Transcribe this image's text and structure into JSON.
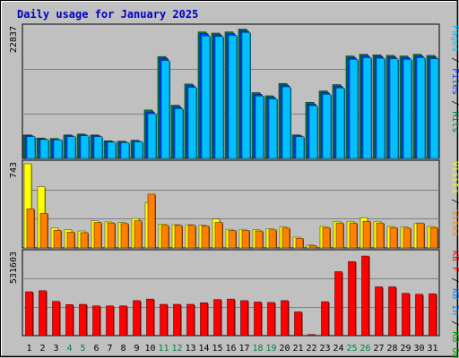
{
  "chart_data": {
    "type": "bar",
    "title": "Daily usage for January 2025",
    "categories": [
      "1",
      "2",
      "3",
      "4",
      "5",
      "6",
      "7",
      "8",
      "9",
      "10",
      "11",
      "12",
      "13",
      "14",
      "15",
      "16",
      "17",
      "18",
      "19",
      "20",
      "21",
      "22",
      "23",
      "24",
      "25",
      "26",
      "27",
      "28",
      "29",
      "30",
      "31"
    ],
    "weekend_days": [
      "4",
      "5",
      "11",
      "12",
      "18",
      "19",
      "25",
      "26"
    ],
    "panels": [
      {
        "id": "hits",
        "max_label": "22837",
        "ymax": 22837,
        "right_label": [
          {
            "text": "Pages",
            "color": "#00c0ff"
          },
          {
            "text": " / ",
            "color": "#000000"
          },
          {
            "text": "Files",
            "color": "#0040ff"
          },
          {
            "text": " / ",
            "color": "#000000"
          },
          {
            "text": "Hits",
            "color": "#008040"
          }
        ],
        "series": [
          {
            "name": "Hits",
            "color": "#008040",
            "values": [
              4100,
              3560,
              3470,
              4100,
              4250,
              4100,
              3080,
              3000,
              3160,
              8460,
              17800,
              9300,
              13000,
              22100,
              21900,
              22100,
              22600,
              11500,
              10950,
              13100,
              4100,
              9800,
              11800,
              12900,
              17900,
              18200,
              18100,
              18000,
              17900,
              18200,
              18000
            ]
          },
          {
            "name": "Files",
            "color": "#0040ff",
            "values": [
              3950,
              3400,
              3320,
              3950,
              4100,
              3950,
              2950,
              2850,
              3010,
              8100,
              17500,
              9000,
              12700,
              21800,
              21600,
              21800,
              22300,
              11200,
              10650,
              12800,
              3950,
              9500,
              11500,
              12600,
              17600,
              17900,
              17800,
              17700,
              17600,
              17900,
              17700
            ]
          },
          {
            "name": "Pages",
            "color": "#00c0ff",
            "values": [
              3800,
              3300,
              3250,
              3800,
              3950,
              3800,
              2850,
              2750,
              2900,
              7800,
              17100,
              8700,
              12400,
              21400,
              21300,
              21500,
              22000,
              10900,
              10400,
              12500,
              3800,
              9200,
              11200,
              12300,
              17300,
              17600,
              17500,
              17400,
              17300,
              17600,
              17400
            ]
          }
        ]
      },
      {
        "id": "visits",
        "max_label": "743",
        "ymax": 743,
        "right_label": [
          {
            "text": "Visits",
            "color": "#ffff00"
          },
          {
            "text": " / ",
            "color": "#000000"
          },
          {
            "text": "Sites",
            "color": "#ff8000"
          }
        ],
        "series": [
          {
            "name": "Visits",
            "color": "#ffff00",
            "values": [
              743,
              540,
              175,
              160,
              150,
              240,
              230,
              225,
              260,
              400,
              210,
              205,
              205,
              200,
              255,
              165,
              165,
              160,
              170,
              185,
              95,
              25,
              190,
              235,
              235,
              265,
              235,
              190,
              185,
              215,
              190
            ]
          },
          {
            "name": "Sites",
            "color": "#ff8000",
            "values": [
              345,
              305,
              155,
              140,
              135,
              225,
              220,
              215,
              240,
              475,
              200,
              200,
              200,
              195,
              225,
              155,
              155,
              150,
              160,
              175,
              85,
              20,
              180,
              220,
              220,
              235,
              220,
              180,
              175,
              220,
              180
            ]
          }
        ]
      },
      {
        "id": "kbytes",
        "max_label": "531603",
        "ymax": 531603,
        "right_label": [
          {
            "text": "KB F",
            "color": "#ff0000"
          },
          {
            "text": " / ",
            "color": "#000000"
          },
          {
            "text": "KB In",
            "color": "#0080ff"
          },
          {
            "text": " / ",
            "color": "#000000"
          },
          {
            "text": "KB Out",
            "color": "#00a000"
          }
        ],
        "series": [
          {
            "name": "KB F",
            "color": "#ff0000",
            "values": [
              283000,
              290000,
              221000,
              200000,
              202000,
              192000,
              192000,
              192000,
              226000,
              236000,
              202000,
              202000,
              202000,
              212000,
              233000,
              236000,
              226000,
              217000,
              214000,
              226000,
              153000,
              7000,
              219000,
              413000,
              478000,
              514000,
              315000,
              315000,
              273000,
              267000,
              270000
            ]
          }
        ]
      }
    ]
  }
}
